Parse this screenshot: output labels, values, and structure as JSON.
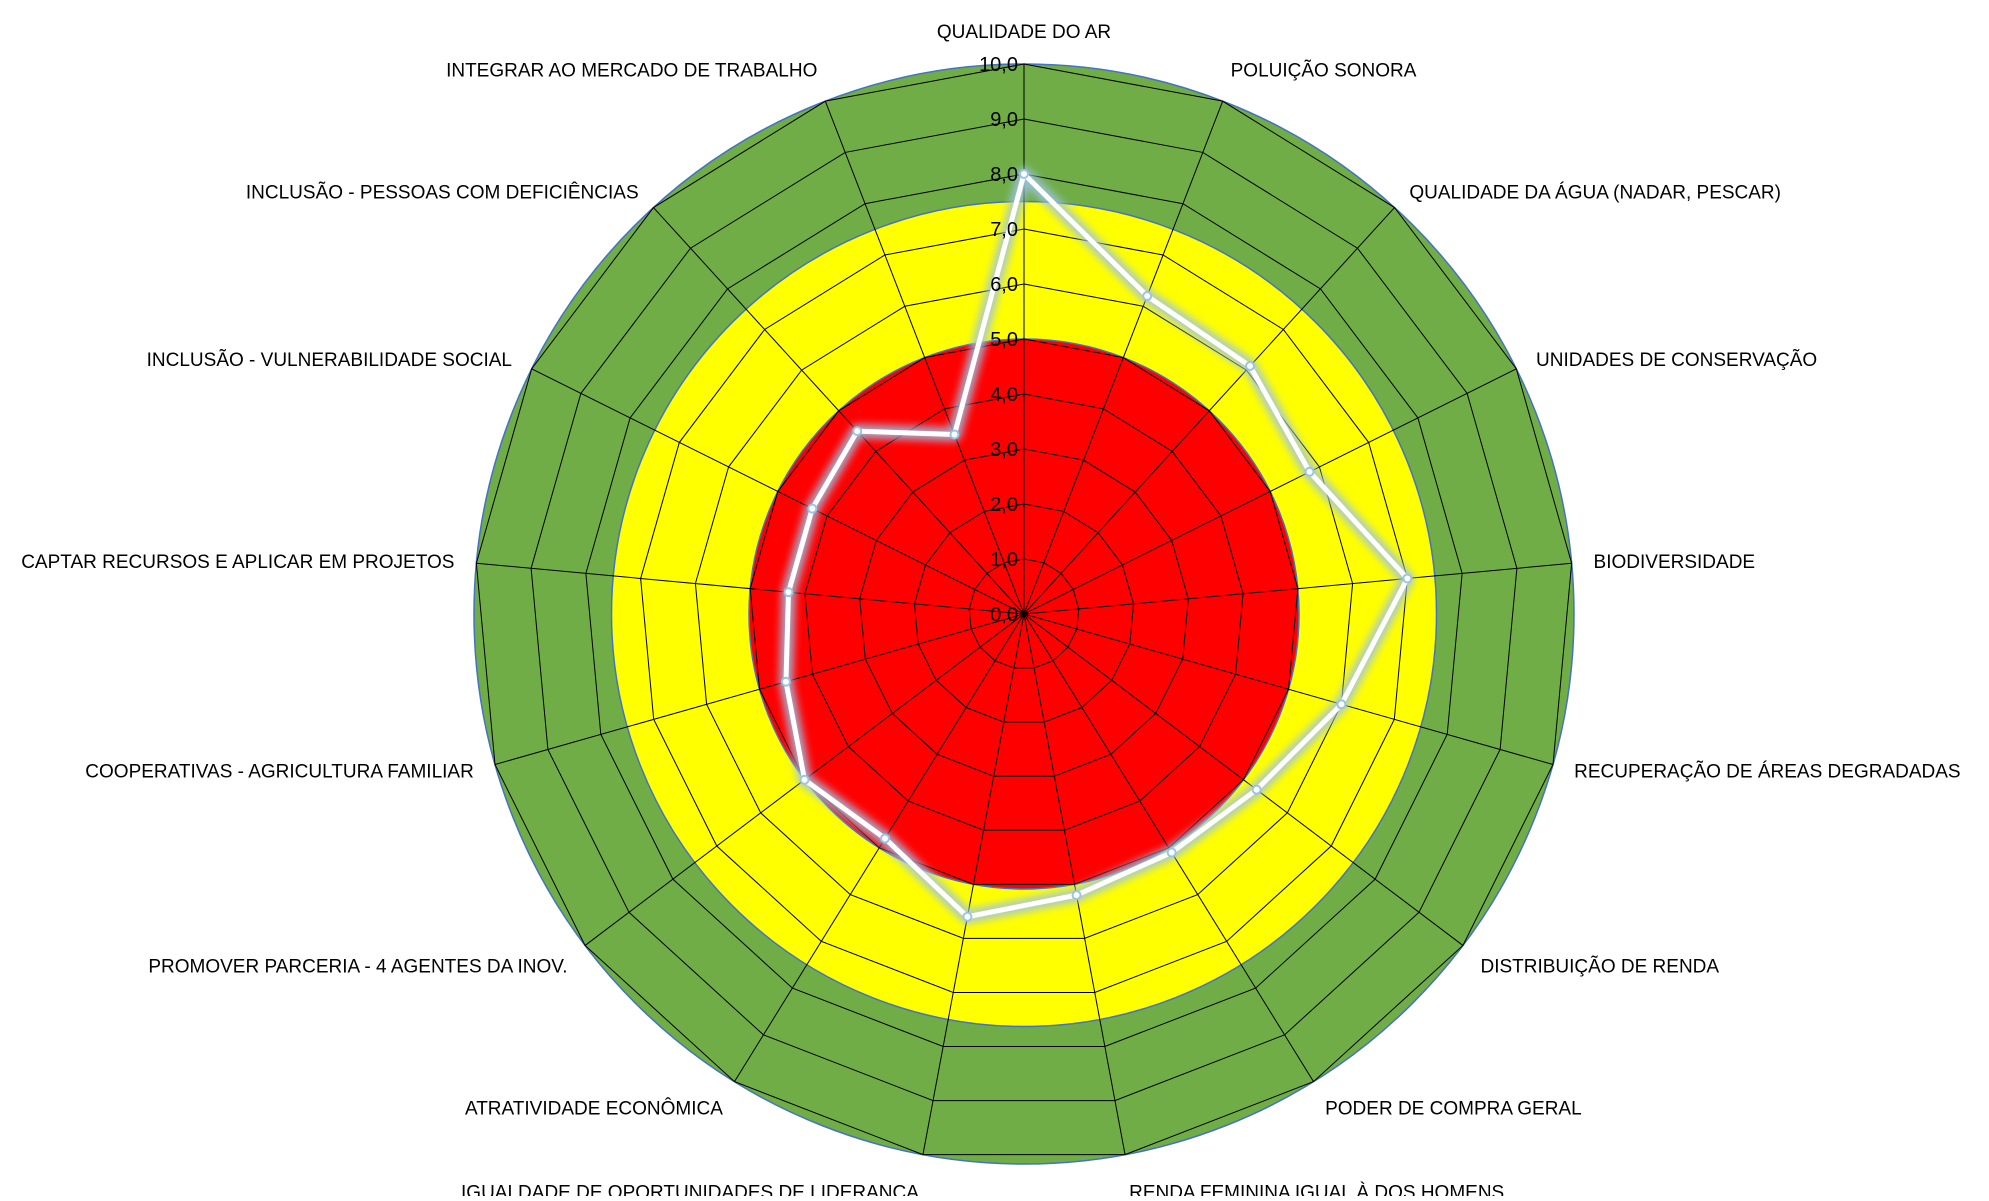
{
  "chart_data": {
    "type": "radar",
    "title": "",
    "categories": [
      "QUALIDADE DO AR",
      "POLUIÇÃO SONORA",
      "QUALIDADE DA ÁGUA (NADAR, PESCAR)",
      "UNIDADES DE CONSERVAÇÃO",
      "BIODIVERSIDADE",
      "RECUPERAÇÃO DE ÁREAS DEGRADADAS",
      "DISTRIBUIÇÃO DE RENDA",
      "PODER DE COMPRA GERAL",
      "RENDA FEMININA IGUAL À DOS HOMENS",
      "IGUALDADE DE OPORTUNIDADES DE LIDERANÇA",
      "ATRATIVIDADE ECONÔMICA",
      "PROMOVER PARCERIA - 4 AGENTES DA INOV.",
      "COOPERATIVAS - AGRICULTURA FAMILIAR",
      "CAPTAR RECURSOS E APLICAR EM PROJETOS",
      "INCLUSÃO - VULNERABILIDADE SOCIAL",
      "INCLUSÃO - PESSOAS COM DEFICIÊNCIAS",
      "INTEGRAR AO MERCADO DE TRABALHO"
    ],
    "series": [
      {
        "values": [
          8.0,
          6.2,
          6.1,
          5.8,
          7.0,
          6.0,
          5.3,
          5.1,
          5.2,
          5.6,
          4.8,
          5.0,
          4.5,
          4.3,
          4.3,
          4.5,
          3.5
        ]
      }
    ],
    "bands": [
      {
        "from": 0,
        "to": 5,
        "color": "#ff0000"
      },
      {
        "from": 5,
        "to": 7.5,
        "color": "#ffff00"
      },
      {
        "from": 7.5,
        "to": 10,
        "color": "#70ad47"
      }
    ],
    "rlim": [
      0,
      10
    ],
    "ticks": [
      "0,0",
      "1,0",
      "2,0",
      "3,0",
      "4,0",
      "5,0",
      "6,0",
      "7,0",
      "8,0",
      "9,0",
      "10,0"
    ],
    "line_color": "#ffffff",
    "glow_color": "#9dc3e6",
    "grid_color": "#000000",
    "legend": "none",
    "grid": true
  }
}
